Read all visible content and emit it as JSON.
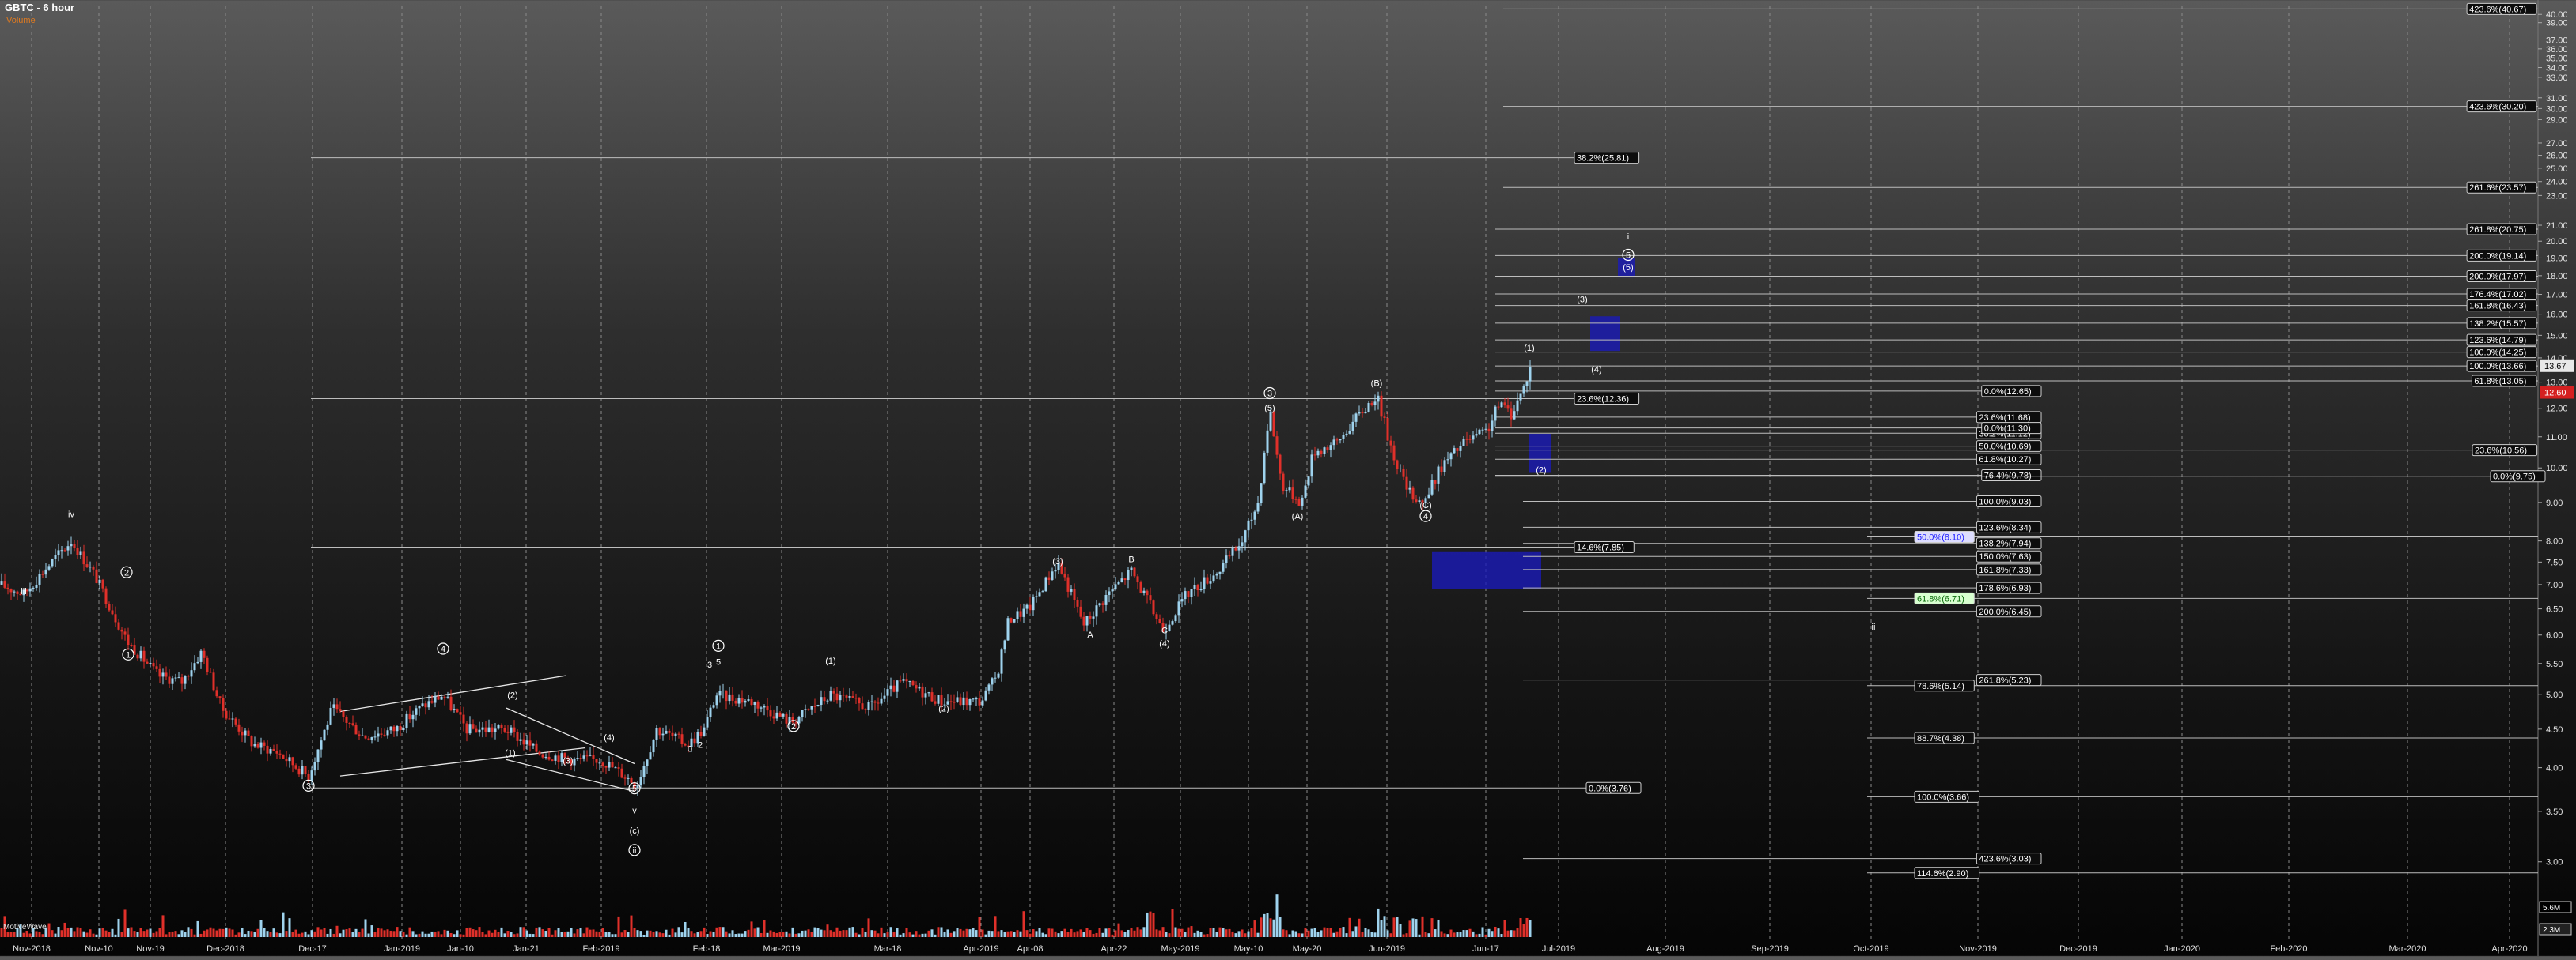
{
  "header": {
    "title": "GBTC - 6 hour",
    "subtitle": "Volume"
  },
  "volume_pane": {
    "label": "MotiveWave",
    "scale_labels": [
      "5.6M",
      "2.3M"
    ]
  },
  "price_axis": {
    "labels": [
      "3.00",
      "3.50",
      "4.00",
      "4.50",
      "5.00",
      "5.50",
      "6.00",
      "6.50",
      "7.00",
      "7.50",
      "8.00",
      "9.00",
      "10.00",
      "11.00",
      "12.00",
      "13.00",
      "14.00",
      "15.00",
      "16.00",
      "17.00",
      "18.00",
      "19.00",
      "20.00",
      "21.00",
      "23.00",
      "24.00",
      "25.00",
      "26.00",
      "27.00",
      "29.00",
      "30.00",
      "31.00",
      "33.00",
      "34.00",
      "35.00",
      "36.00",
      "37.00",
      "39.00",
      "40.00"
    ],
    "current_price": "13.67",
    "secondary_price": "12.60"
  },
  "time_axis": {
    "labels": [
      "Nov-2018",
      "Nov-10",
      "Nov-19",
      "Dec-2018",
      "Dec-17",
      "Jan-2019",
      "Jan-10",
      "Jan-21",
      "Feb-2019",
      "Feb-18",
      "Mar-2019",
      "Mar-18",
      "Apr-2019",
      "Apr-08",
      "Apr-22",
      "May-2019",
      "May-10",
      "May-20",
      "Jun-2019",
      "Jun-17",
      "Jul-2019",
      "Aug-2019",
      "Sep-2019",
      "Oct-2019",
      "Nov-2019",
      "Dec-2019",
      "Jan-2020",
      "Feb-2020",
      "Mar-2020",
      "Apr-2020"
    ]
  },
  "fib_levels": [
    {
      "label": "423.6%(40.67)",
      "price": 40.67,
      "x1": 1900,
      "style": "boxed"
    },
    {
      "label": "423.6%(30.20)",
      "price": 30.2,
      "x1": 1900,
      "style": "boxed"
    },
    {
      "label": "38.2%(25.81)",
      "price": 25.81,
      "x1": 393,
      "x2": 2012,
      "style": "boxed"
    },
    {
      "label": "261.6%(23.57)",
      "price": 23.57,
      "x1": 1900,
      "style": "boxed"
    },
    {
      "label": "261.8%(20.75)",
      "price": 20.75,
      "x1": 1890,
      "style": "boxed"
    },
    {
      "label": "200.0%(19.14)",
      "price": 19.14,
      "x1": 1890,
      "style": "boxed"
    },
    {
      "label": "200.0%(17.97)",
      "price": 17.97,
      "x1": 1890,
      "style": "boxed"
    },
    {
      "label": "176.4%(17.02)",
      "price": 17.02,
      "x1": 1890,
      "style": "boxed"
    },
    {
      "label": "161.8%(16.43)",
      "price": 16.43,
      "x1": 1890,
      "style": "boxed"
    },
    {
      "label": "138.2%(15.57)",
      "price": 15.57,
      "x1": 1890,
      "style": "boxed"
    },
    {
      "label": "123.6%(14.79)",
      "price": 14.79,
      "x1": 1890,
      "style": "boxed"
    },
    {
      "label": "100.0%(14.25)",
      "price": 14.25,
      "x1": 1890,
      "style": "boxed"
    },
    {
      "label": "100.0%(13.66)",
      "price": 13.66,
      "x1": 1890,
      "style": "boxed"
    },
    {
      "label": "61.8%(13.05)",
      "price": 13.05,
      "x1": 1890,
      "style": "boxed"
    },
    {
      "label": "0.0%(12.65)",
      "price": 12.65,
      "x1": 1890,
      "x2": 2580,
      "style": "boxed"
    },
    {
      "label": "23.6%(12.36)",
      "price": 12.36,
      "x1": 393,
      "x2": 2070,
      "style": "boxed"
    },
    {
      "label": "23.6%(11.68)",
      "price": 11.68,
      "x1": 1890,
      "x2": 2580,
      "style": "boxed"
    },
    {
      "label": "38.2%(11.12)",
      "price": 11.12,
      "x1": 1890,
      "x2": 2580,
      "style": "boxed"
    },
    {
      "label": "0.0%(11.30)",
      "price": 11.3,
      "x1": 1890,
      "x2": 2580,
      "style": "boxed"
    },
    {
      "label": "50.0%(10.69)",
      "price": 10.69,
      "x1": 1890,
      "x2": 2580,
      "style": "boxed"
    },
    {
      "label": "23.6%(10.56)",
      "price": 10.56,
      "x1": 1890,
      "x2": 3160,
      "style": "boxed"
    },
    {
      "label": "61.8%(10.27)",
      "price": 10.27,
      "x1": 1890,
      "x2": 2580,
      "style": "boxed"
    },
    {
      "label": "76.4%(9.78)",
      "price": 9.78,
      "x1": 1890,
      "x2": 2580,
      "style": "boxed"
    },
    {
      "label": "0.0%(9.75)",
      "price": 9.75,
      "x1": 1890,
      "x2": 3160,
      "style": "boxed"
    },
    {
      "label": "100.0%(9.03)",
      "price": 9.03,
      "x1": 1925,
      "x2": 2580,
      "style": "boxed"
    },
    {
      "label": "123.6%(8.34)",
      "price": 8.34,
      "x1": 1925,
      "x2": 2580,
      "style": "boxed"
    },
    {
      "label": "50.0%(8.10)",
      "price": 8.1,
      "x1": 2360,
      "style": "highlight-blue"
    },
    {
      "label": "138.2%(7.94)",
      "price": 7.94,
      "x1": 1925,
      "x2": 2580,
      "style": "boxed"
    },
    {
      "label": "14.6%(7.85)",
      "price": 7.85,
      "x1": 393,
      "x2": 2050,
      "style": "boxed"
    },
    {
      "label": "150.0%(7.63)",
      "price": 7.63,
      "x1": 1925,
      "x2": 2580,
      "style": "boxed"
    },
    {
      "label": "161.8%(7.33)",
      "price": 7.33,
      "x1": 1925,
      "x2": 2580,
      "style": "boxed"
    },
    {
      "label": "178.6%(6.93)",
      "price": 6.93,
      "x1": 1925,
      "x2": 2580,
      "style": "boxed"
    },
    {
      "label": "61.8%(6.71)",
      "price": 6.71,
      "x1": 2360,
      "style": "highlight-green"
    },
    {
      "label": "200.0%(6.45)",
      "price": 6.45,
      "x1": 1925,
      "x2": 2580,
      "style": "boxed"
    },
    {
      "label": "78.6%(5.14)",
      "price": 5.14,
      "x1": 2360,
      "style": "boxed"
    },
    {
      "label": "261.8%(5.23)",
      "price": 5.23,
      "x1": 1925,
      "x2": 2580,
      "style": "boxed"
    },
    {
      "label": "88.7%(4.38)",
      "price": 4.38,
      "x1": 2360,
      "style": "boxed"
    },
    {
      "label": "0.0%(3.76)",
      "price": 3.76,
      "x1": 393,
      "x2": 2070,
      "style": "boxed"
    },
    {
      "label": "100.0%(3.66)",
      "price": 3.66,
      "x1": 2360,
      "style": "boxed"
    },
    {
      "label": "423.6%(3.03)",
      "price": 3.03,
      "x1": 1925,
      "x2": 2580,
      "style": "boxed"
    },
    {
      "label": "114.6%(2.90)",
      "price": 2.9,
      "x1": 2360,
      "style": "boxed"
    }
  ],
  "wave_labels": [
    {
      "text": "iii",
      "x": 30,
      "price": 6.8
    },
    {
      "text": "iv",
      "x": 90,
      "price": 8.6
    },
    {
      "text": "2",
      "x": 160,
      "price": 7.2,
      "circled": true
    },
    {
      "text": "1",
      "x": 162,
      "price": 5.6,
      "circled": true
    },
    {
      "text": "3",
      "x": 390,
      "price": 3.75,
      "circled": true
    },
    {
      "text": "4",
      "x": 560,
      "price": 5.7,
      "circled": true
    },
    {
      "text": "(2)",
      "x": 648,
      "price": 4.95
    },
    {
      "text": "(1)",
      "x": 645,
      "price": 4.15
    },
    {
      "text": "(4)",
      "x": 770,
      "price": 4.35
    },
    {
      "text": "(3)",
      "x": 718,
      "price": 4.05
    },
    {
      "text": "5",
      "x": 802,
      "price": 3.72,
      "circled": true
    },
    {
      "text": "v",
      "x": 802,
      "price": 3.48
    },
    {
      "text": "(c)",
      "x": 802,
      "price": 3.27
    },
    {
      "text": "ii",
      "x": 802,
      "price": 3.08,
      "circled": true
    },
    {
      "text": "2",
      "x": 885,
      "price": 4.25
    },
    {
      "text": "0",
      "x": 872,
      "price": 4.2
    },
    {
      "text": "1",
      "x": 908,
      "price": 5.75,
      "circled": true
    },
    {
      "text": "3",
      "x": 897,
      "price": 5.43
    },
    {
      "text": "5",
      "x": 908,
      "price": 5.48
    },
    {
      "text": "2",
      "x": 1003,
      "price": 4.5,
      "circled": true
    },
    {
      "text": "(1)",
      "x": 1050,
      "price": 5.5
    },
    {
      "text": "(2)",
      "x": 1193,
      "price": 4.75
    },
    {
      "text": "(3)",
      "x": 1337,
      "price": 7.45
    },
    {
      "text": "A",
      "x": 1378,
      "price": 5.95
    },
    {
      "text": "B",
      "x": 1430,
      "price": 7.5
    },
    {
      "text": "C",
      "x": 1472,
      "price": 6.03
    },
    {
      "text": "(4)",
      "x": 1472,
      "price": 5.8
    },
    {
      "text": "3",
      "x": 1605,
      "price": 12.45,
      "circled": true
    },
    {
      "text": "(5)",
      "x": 1605,
      "price": 11.9
    },
    {
      "text": "(A)",
      "x": 1640,
      "price": 8.55
    },
    {
      "text": "(B)",
      "x": 1740,
      "price": 12.85
    },
    {
      "text": "(C)",
      "x": 1802,
      "price": 8.85
    },
    {
      "text": "4",
      "x": 1802,
      "price": 8.55,
      "circled": true
    },
    {
      "text": "(1)",
      "x": 1933,
      "price": 14.3
    },
    {
      "text": "(2)",
      "x": 1948,
      "price": 9.85
    },
    {
      "text": "(3)",
      "x": 2000,
      "price": 16.6
    },
    {
      "text": "(4)",
      "x": 2018,
      "price": 13.4
    },
    {
      "text": "5",
      "x": 2058,
      "price": 19.0,
      "circled": true
    },
    {
      "text": "(5)",
      "x": 2058,
      "price": 18.3
    },
    {
      "text": "i",
      "x": 2058,
      "price": 20.1
    },
    {
      "text": "ii",
      "x": 2368,
      "price": 6.1
    }
  ],
  "chart_data": {
    "type": "candlestick",
    "title": "GBTC - 6 hour",
    "xlabel": "",
    "ylabel": "",
    "ylim": [
      2.6,
      41
    ],
    "y_scale": "log",
    "grid": true,
    "price_path": [
      {
        "x": 0,
        "price": 7.0
      },
      {
        "x": 30,
        "price": 6.8
      },
      {
        "x": 60,
        "price": 7.4
      },
      {
        "x": 90,
        "price": 8.0
      },
      {
        "x": 120,
        "price": 7.2
      },
      {
        "x": 160,
        "price": 5.9
      },
      {
        "x": 200,
        "price": 5.3
      },
      {
        "x": 230,
        "price": 5.2
      },
      {
        "x": 255,
        "price": 5.7
      },
      {
        "x": 280,
        "price": 4.8
      },
      {
        "x": 320,
        "price": 4.3
      },
      {
        "x": 350,
        "price": 4.2
      },
      {
        "x": 390,
        "price": 3.9
      },
      {
        "x": 420,
        "price": 4.8
      },
      {
        "x": 460,
        "price": 4.4
      },
      {
        "x": 500,
        "price": 4.5
      },
      {
        "x": 530,
        "price": 4.8
      },
      {
        "x": 560,
        "price": 5.0
      },
      {
        "x": 590,
        "price": 4.5
      },
      {
        "x": 640,
        "price": 4.5
      },
      {
        "x": 680,
        "price": 4.2
      },
      {
        "x": 720,
        "price": 4.1
      },
      {
        "x": 760,
        "price": 4.1
      },
      {
        "x": 790,
        "price": 3.9
      },
      {
        "x": 805,
        "price": 3.8
      },
      {
        "x": 830,
        "price": 4.5
      },
      {
        "x": 870,
        "price": 4.3
      },
      {
        "x": 890,
        "price": 4.5
      },
      {
        "x": 905,
        "price": 5.0
      },
      {
        "x": 950,
        "price": 4.9
      },
      {
        "x": 1000,
        "price": 4.6
      },
      {
        "x": 1050,
        "price": 5.0
      },
      {
        "x": 1100,
        "price": 4.8
      },
      {
        "x": 1140,
        "price": 5.2
      },
      {
        "x": 1190,
        "price": 4.9
      },
      {
        "x": 1240,
        "price": 4.9
      },
      {
        "x": 1260,
        "price": 5.3
      },
      {
        "x": 1275,
        "price": 6.3
      },
      {
        "x": 1300,
        "price": 6.5
      },
      {
        "x": 1337,
        "price": 7.5
      },
      {
        "x": 1370,
        "price": 6.2
      },
      {
        "x": 1400,
        "price": 6.8
      },
      {
        "x": 1430,
        "price": 7.3
      },
      {
        "x": 1470,
        "price": 6.1
      },
      {
        "x": 1500,
        "price": 6.8
      },
      {
        "x": 1540,
        "price": 7.3
      },
      {
        "x": 1570,
        "price": 8.0
      },
      {
        "x": 1590,
        "price": 9.0
      },
      {
        "x": 1605,
        "price": 12.0
      },
      {
        "x": 1620,
        "price": 9.5
      },
      {
        "x": 1645,
        "price": 9.0
      },
      {
        "x": 1660,
        "price": 10.5
      },
      {
        "x": 1690,
        "price": 10.8
      },
      {
        "x": 1710,
        "price": 11.5
      },
      {
        "x": 1740,
        "price": 12.5
      },
      {
        "x": 1760,
        "price": 10.5
      },
      {
        "x": 1780,
        "price": 9.3
      },
      {
        "x": 1800,
        "price": 9.0
      },
      {
        "x": 1820,
        "price": 10.0
      },
      {
        "x": 1850,
        "price": 10.8
      },
      {
        "x": 1880,
        "price": 11.2
      },
      {
        "x": 1895,
        "price": 12.2
      },
      {
        "x": 1910,
        "price": 11.8
      },
      {
        "x": 1925,
        "price": 12.7
      },
      {
        "x": 1935,
        "price": 13.7
      }
    ]
  }
}
